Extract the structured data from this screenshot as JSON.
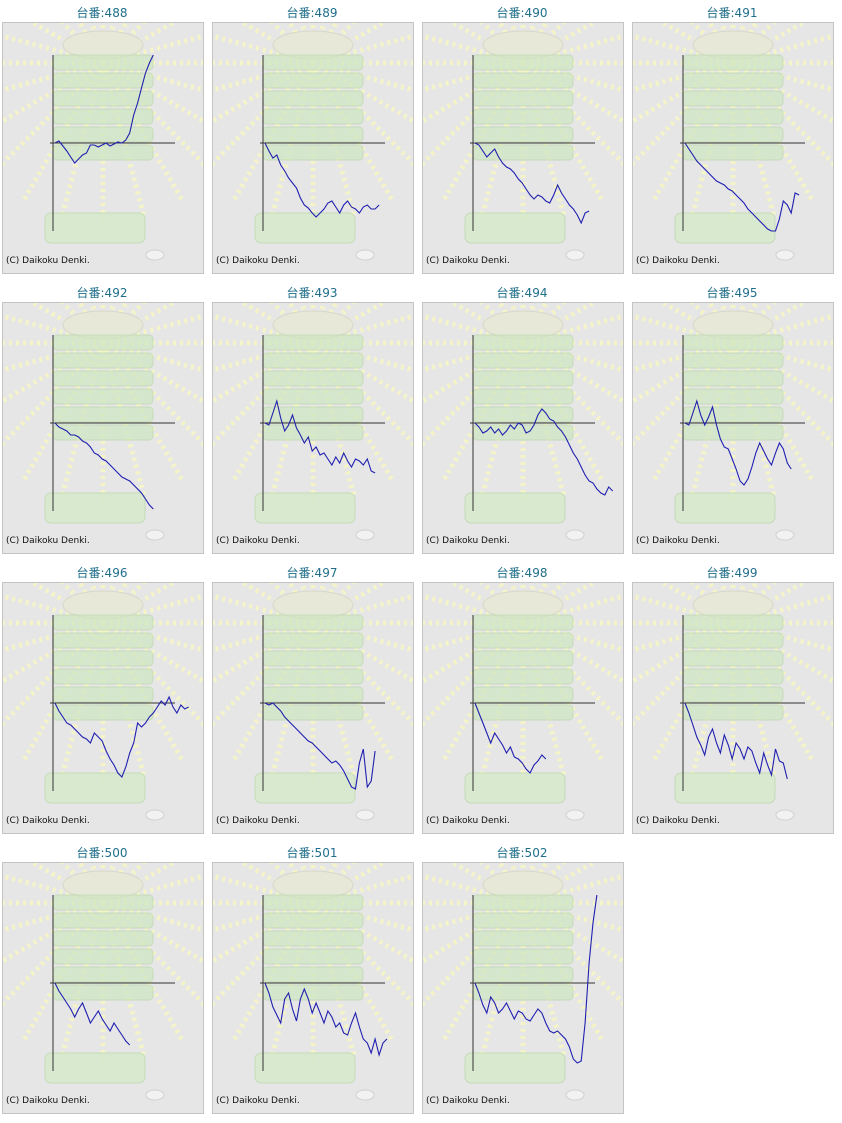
{
  "colors": {
    "title": "#1f6f8b",
    "line": "#1f1fb0",
    "axis": "#333333",
    "background": "#e6e6e6",
    "ray": "#f4f4c8",
    "machine": "#cfe6c2"
  },
  "copyright": "(C) Daikoku Denki.",
  "chart_data": [
    {
      "type": "line",
      "title": "台番:488",
      "values": [
        0,
        -2,
        3,
        8,
        14,
        20,
        16,
        12,
        10,
        2,
        2,
        4,
        2,
        0,
        3,
        1,
        -1,
        0,
        -3,
        -10,
        -28,
        -40,
        -55,
        -70,
        -80,
        -88
      ]
    },
    {
      "type": "line",
      "title": "台番:489",
      "values": [
        0,
        8,
        15,
        12,
        22,
        28,
        35,
        40,
        45,
        55,
        62,
        65,
        70,
        74,
        70,
        66,
        60,
        58,
        64,
        70,
        62,
        58,
        64,
        66,
        70,
        64,
        62,
        66,
        66,
        62
      ]
    },
    {
      "type": "line",
      "title": "台番:490",
      "values": [
        0,
        2,
        8,
        14,
        10,
        6,
        14,
        20,
        24,
        26,
        30,
        36,
        40,
        46,
        52,
        56,
        52,
        54,
        58,
        60,
        52,
        42,
        50,
        56,
        62,
        66,
        72,
        80,
        70,
        68
      ]
    },
    {
      "type": "line",
      "title": "台番:491",
      "values": [
        0,
        6,
        12,
        18,
        22,
        26,
        30,
        34,
        38,
        40,
        42,
        46,
        48,
        52,
        56,
        60,
        66,
        70,
        74,
        78,
        82,
        86,
        90,
        88,
        76,
        58,
        62,
        70,
        50,
        52
      ]
    },
    {
      "type": "line",
      "title": "台番:492",
      "values": [
        0,
        4,
        6,
        8,
        12,
        12,
        14,
        18,
        20,
        24,
        30,
        32,
        36,
        38,
        42,
        46,
        50,
        54,
        56,
        58,
        62,
        66,
        70,
        76,
        82,
        86
      ]
    },
    {
      "type": "line",
      "title": "台番:493",
      "values": [
        0,
        2,
        -10,
        -22,
        -5,
        8,
        2,
        -8,
        5,
        12,
        20,
        14,
        28,
        24,
        32,
        30,
        36,
        42,
        34,
        40,
        30,
        38,
        44,
        36,
        38,
        42,
        36,
        48,
        50
      ]
    },
    {
      "type": "line",
      "title": "台番:494",
      "values": [
        0,
        4,
        10,
        8,
        4,
        10,
        6,
        12,
        8,
        2,
        6,
        0,
        2,
        10,
        8,
        2,
        -8,
        -14,
        -10,
        -4,
        -2,
        4,
        8,
        14,
        22,
        30,
        36,
        44,
        52,
        58,
        60,
        66,
        70,
        72,
        64,
        68
      ]
    },
    {
      "type": "line",
      "title": "台番:495",
      "values": [
        0,
        2,
        -10,
        -22,
        -8,
        2,
        -6,
        -16,
        2,
        16,
        24,
        26,
        36,
        46,
        58,
        62,
        56,
        44,
        30,
        20,
        28,
        36,
        42,
        30,
        20,
        26,
        40,
        46
      ]
    },
    {
      "type": "line",
      "title": "台番:496",
      "values": [
        0,
        8,
        14,
        20,
        22,
        26,
        30,
        34,
        36,
        40,
        30,
        34,
        38,
        48,
        56,
        62,
        70,
        74,
        64,
        50,
        40,
        20,
        24,
        20,
        14,
        10,
        4,
        -2,
        2,
        -6,
        4,
        10,
        2,
        6,
        4
      ]
    },
    {
      "type": "line",
      "title": "台番:497",
      "values": [
        0,
        2,
        0,
        4,
        8,
        14,
        18,
        22,
        26,
        30,
        34,
        38,
        40,
        44,
        48,
        52,
        56,
        60,
        58,
        62,
        68,
        76,
        84,
        86,
        60,
        46,
        84,
        78,
        48
      ]
    },
    {
      "type": "line",
      "title": "台番:498",
      "values": [
        0,
        10,
        20,
        30,
        40,
        30,
        36,
        42,
        50,
        44,
        54,
        56,
        60,
        66,
        70,
        62,
        58,
        52,
        56
      ]
    },
    {
      "type": "line",
      "title": "台番:499",
      "values": [
        0,
        10,
        22,
        34,
        42,
        52,
        34,
        26,
        40,
        50,
        32,
        42,
        56,
        40,
        46,
        56,
        44,
        48,
        60,
        70,
        50,
        62,
        72,
        46,
        58,
        60,
        76
      ]
    },
    {
      "type": "line",
      "title": "台番:500",
      "values": [
        0,
        8,
        14,
        20,
        26,
        34,
        26,
        20,
        30,
        40,
        34,
        28,
        36,
        42,
        48,
        40,
        46,
        52,
        58,
        62
      ]
    },
    {
      "type": "line",
      "title": "台番:501",
      "values": [
        0,
        10,
        24,
        32,
        40,
        16,
        10,
        26,
        38,
        16,
        6,
        16,
        30,
        20,
        30,
        40,
        28,
        34,
        44,
        40,
        50,
        52,
        40,
        30,
        44,
        56,
        60,
        70,
        56,
        72,
        60,
        56
      ]
    },
    {
      "type": "line",
      "title": "台番:502",
      "values": [
        0,
        10,
        22,
        30,
        14,
        20,
        30,
        26,
        20,
        28,
        36,
        28,
        30,
        36,
        38,
        32,
        26,
        30,
        40,
        48,
        50,
        48,
        52,
        56,
        64,
        76,
        80,
        78,
        40,
        -20,
        -60,
        -92
      ]
    }
  ]
}
